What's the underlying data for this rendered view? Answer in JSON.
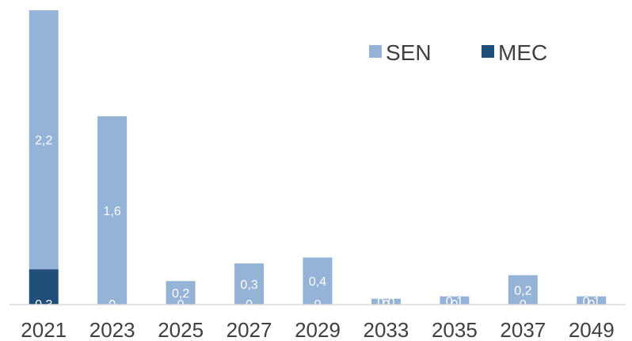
{
  "chart_data": {
    "type": "bar",
    "stacked": true,
    "categories": [
      "2021",
      "2023",
      "2025",
      "2027",
      "2029",
      "2033",
      "2035",
      "2037",
      "2049"
    ],
    "series": [
      {
        "name": "MEC",
        "color": "#1F4E79",
        "values": [
          0.3,
          0,
          0,
          0,
          0,
          0,
          0,
          0,
          0
        ],
        "labels": [
          "0,3",
          "0",
          "0",
          "0",
          "0",
          "0",
          "0",
          "0",
          "0"
        ]
      },
      {
        "name": "SEN",
        "color": "#95B3D7",
        "values": [
          2.2,
          1.6,
          0.2,
          0.3,
          0.4,
          0.0,
          0.1,
          0.2,
          0.1
        ],
        "labels": [
          "2,2",
          "1,6",
          "0,2",
          "0,3",
          "0,4",
          "0,0",
          "0,1",
          "0,2",
          "0,1"
        ]
      }
    ],
    "totals": [
      2.5,
      1.6,
      0.2,
      0.35,
      0.4,
      0.05,
      0.07,
      0.25,
      0.07
    ],
    "legend": {
      "position": "top-right",
      "entries": [
        "SEN",
        "MEC"
      ]
    },
    "ylim": [
      0,
      2.5
    ],
    "grid": false,
    "title": "",
    "xlabel": "",
    "ylabel": ""
  }
}
